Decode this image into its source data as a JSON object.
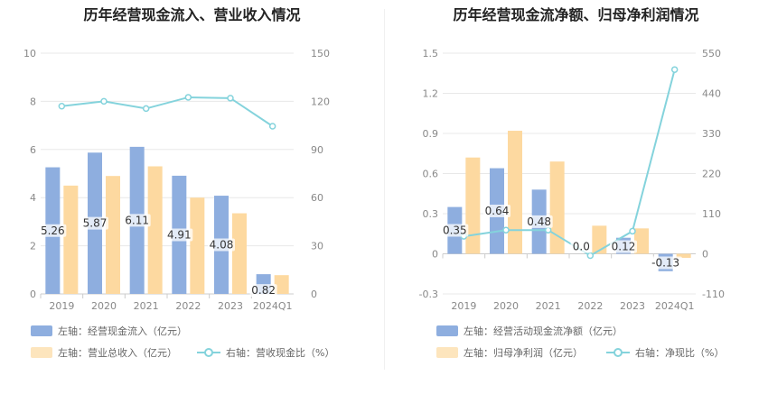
{
  "colors": {
    "bar1": "#8eaedf",
    "bar2": "#fdd9a0",
    "line": "#84d3dc",
    "grid": "#e8e8e8",
    "axis": "#888888"
  },
  "left": {
    "title": "历年经营现金流入、营业收入情况",
    "legend": {
      "bar1": "左轴：经营现金流入（亿元）",
      "bar2": "左轴：营业总收入（亿元）",
      "line": "右轴：营收现金比（%）"
    }
  },
  "right": {
    "title": "历年经营现金流净额、归母净利润情况",
    "legend": {
      "bar1": "左轴：经营活动现金流净额（亿元）",
      "bar2": "左轴：归母净利润（亿元）",
      "line": "右轴：净现比（%）"
    }
  },
  "chart_data": [
    {
      "type": "bar",
      "categories": [
        "2019",
        "2020",
        "2021",
        "2022",
        "2023",
        "2024Q1"
      ],
      "series": [
        {
          "name": "左轴：经营现金流入（亿元）",
          "type": "bar",
          "axis": "left",
          "values": [
            5.26,
            5.87,
            6.11,
            4.91,
            4.08,
            0.82
          ],
          "labels": [
            "5.26",
            "5.87",
            "6.11",
            "4.91",
            "4.08",
            "0.82"
          ]
        },
        {
          "name": "左轴：营业总收入（亿元）",
          "type": "bar",
          "axis": "left",
          "values": [
            4.5,
            4.9,
            5.3,
            4.0,
            3.35,
            0.78
          ]
        },
        {
          "name": "右轴：营收现金比（%）",
          "type": "line",
          "axis": "right",
          "values": [
            117,
            120,
            115.5,
            122.5,
            122,
            104.5
          ]
        }
      ],
      "yleft": {
        "min": 0,
        "max": 10,
        "ticks": [
          "0",
          "2",
          "4",
          "6",
          "8",
          "10"
        ]
      },
      "yright": {
        "min": 0,
        "max": 150,
        "ticks": [
          "0",
          "30",
          "60",
          "90",
          "120",
          "150"
        ]
      },
      "grid": true
    },
    {
      "type": "bar",
      "categories": [
        "2019",
        "2020",
        "2021",
        "2022",
        "2023",
        "2024Q1"
      ],
      "series": [
        {
          "name": "左轴：经营活动现金流净额（亿元）",
          "type": "bar",
          "axis": "left",
          "values": [
            0.35,
            0.64,
            0.48,
            0.0,
            0.12,
            -0.13
          ],
          "labels": [
            "0.35",
            "0.64",
            "0.48",
            "0.0",
            "0.12",
            "-0.13"
          ]
        },
        {
          "name": "左轴：归母净利润（亿元）",
          "type": "bar",
          "axis": "left",
          "values": [
            0.72,
            0.92,
            0.69,
            0.21,
            0.19,
            -0.03
          ]
        },
        {
          "name": "右轴：净现比（%）",
          "type": "line",
          "axis": "right",
          "values": [
            48,
            65,
            65,
            -5,
            62,
            505
          ]
        }
      ],
      "yleft": {
        "min": -0.3,
        "max": 1.5,
        "ticks": [
          "-0.3",
          "0",
          "0.3",
          "0.6",
          "0.9",
          "1.2",
          "1.5"
        ]
      },
      "yright": {
        "min": -110,
        "max": 550,
        "ticks": [
          "-110",
          "0",
          "110",
          "220",
          "330",
          "440",
          "550"
        ]
      },
      "grid": true
    }
  ]
}
